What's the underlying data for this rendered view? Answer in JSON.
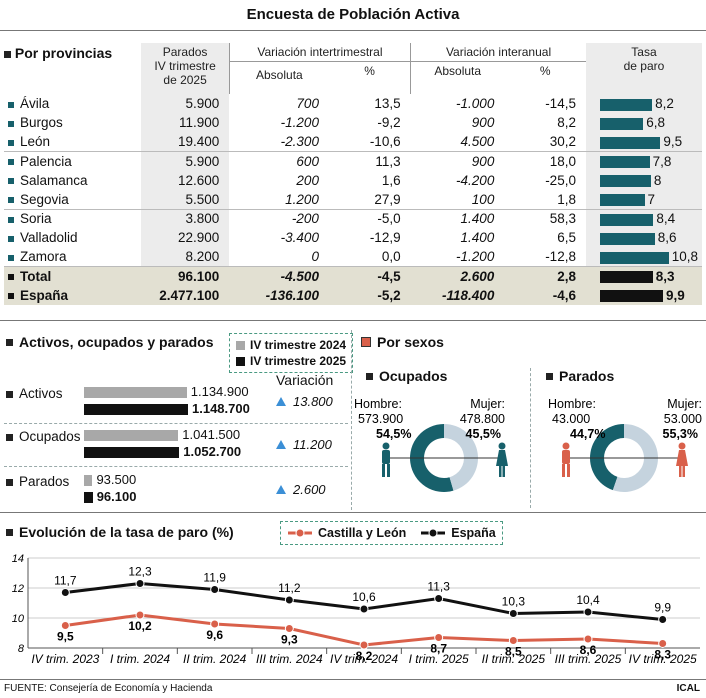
{
  "title": "Encuesta de Población Activa",
  "provincias": {
    "section_label": "Por provincias",
    "headers": {
      "parados": "Parados\nIV trimestre\nde 2025",
      "var_inter": "Variación intertrimestral",
      "var_anual": "Variación interanual",
      "absoluta": "Absoluta",
      "pct": "%",
      "tasa": "Tasa\nde paro"
    },
    "rows": [
      {
        "name": "Ávila",
        "parados": "5.900",
        "abs_t": "700",
        "pct_t": "13,5",
        "abs_a": "-1.000",
        "pct_a": "-14,5",
        "tasa": "8,2",
        "tasa_val": 8.2
      },
      {
        "name": "Burgos",
        "parados": "11.900",
        "abs_t": "-1.200",
        "pct_t": "-9,2",
        "abs_a": "900",
        "pct_a": "8,2",
        "tasa": "6,8",
        "tasa_val": 6.8
      },
      {
        "name": "León",
        "parados": "19.400",
        "abs_t": "-2.300",
        "pct_t": "-10,6",
        "abs_a": "4.500",
        "pct_a": "30,2",
        "tasa": "9,5",
        "tasa_val": 9.5
      },
      {
        "name": "Palencia",
        "parados": "5.900",
        "abs_t": "600",
        "pct_t": "11,3",
        "abs_a": "900",
        "pct_a": "18,0",
        "tasa": "7,8",
        "tasa_val": 7.8
      },
      {
        "name": "Salamanca",
        "parados": "12.600",
        "abs_t": "200",
        "pct_t": "1,6",
        "abs_a": "-4.200",
        "pct_a": "-25,0",
        "tasa": "8",
        "tasa_val": 8.0
      },
      {
        "name": "Segovia",
        "parados": "5.500",
        "abs_t": "1.200",
        "pct_t": "27,9",
        "abs_a": "100",
        "pct_a": "1,8",
        "tasa": "7",
        "tasa_val": 7.0
      },
      {
        "name": "Soria",
        "parados": "3.800",
        "abs_t": "-200",
        "pct_t": "-5,0",
        "abs_a": "1.400",
        "pct_a": "58,3",
        "tasa": "8,4",
        "tasa_val": 8.4
      },
      {
        "name": "Valladolid",
        "parados": "22.900",
        "abs_t": "-3.400",
        "pct_t": "-12,9",
        "abs_a": "1.400",
        "pct_a": "6,5",
        "tasa": "8,6",
        "tasa_val": 8.6
      },
      {
        "name": "Zamora",
        "parados": "8.200",
        "abs_t": "0",
        "pct_t": "0,0",
        "abs_a": "-1.200",
        "pct_a": "-12,8",
        "tasa": "10,8",
        "tasa_val": 10.8
      }
    ],
    "totals": [
      {
        "name": "Total",
        "parados": "96.100",
        "abs_t": "-4.500",
        "pct_t": "-4,5",
        "abs_a": "2.600",
        "pct_a": "2,8",
        "tasa": "8,3",
        "tasa_val": 8.3
      },
      {
        "name": "España",
        "parados": "2.477.100",
        "abs_t": "-136.100",
        "pct_t": "-5,2",
        "abs_a": "-118.400",
        "pct_a": "-4,6",
        "tasa": "9,9",
        "tasa_val": 9.9
      }
    ]
  },
  "activos": {
    "section_label": "Activos, ocupados y parados",
    "legend": [
      "IV trimestre 2024",
      "IV trimestre 2025"
    ],
    "variacion_label": "Variación",
    "rows": [
      {
        "name": "Activos",
        "v2024": "1.134.900",
        "v2025": "1.148.700",
        "n2024": 1134900,
        "n2025": 1148700,
        "variacion": "13.800"
      },
      {
        "name": "Ocupados",
        "v2024": "1.041.500",
        "v2025": "1.052.700",
        "n2024": 1041500,
        "n2025": 1052700,
        "variacion": "11.200"
      },
      {
        "name": "Parados",
        "v2024": "93.500",
        "v2025": "96.100",
        "n2024": 93500,
        "n2025": 96100,
        "variacion": "2.600"
      }
    ]
  },
  "sexos": {
    "section_label": "Por sexos",
    "ocupados": {
      "label": "Ocupados",
      "hombre_label": "Hombre:",
      "hombre_val": "573.900",
      "hombre_pct": "54,5%",
      "hombre_num": 54.5,
      "mujer_label": "Mujer:",
      "mujer_val": "478.800",
      "mujer_pct": "45,5%",
      "mujer_num": 45.5
    },
    "parados": {
      "label": "Parados",
      "hombre_label": "Hombre:",
      "hombre_val": "43.000",
      "hombre_pct": "44,7%",
      "hombre_num": 44.7,
      "mujer_label": "Mujer:",
      "mujer_val": "53.000",
      "mujer_pct": "55,3%",
      "mujer_num": 55.3
    }
  },
  "evolucion": {
    "section_label": "Evolución de la tasa de paro (%)",
    "legend": [
      "Castilla y León",
      "España"
    ]
  },
  "chart_data": {
    "type": "line",
    "title": "Evolución de la tasa de paro (%)",
    "categories": [
      "IV trim. 2023",
      "I trim. 2024",
      "II trim. 2024",
      "III trim. 2024",
      "IV trim. 2024",
      "I trim. 2025",
      "II trim. 2025",
      "III trim. 2025",
      "IV trim. 2025"
    ],
    "series": [
      {
        "name": "Castilla y León",
        "values": [
          9.5,
          10.2,
          9.6,
          9.3,
          8.2,
          8.7,
          8.5,
          8.6,
          8.3
        ],
        "labels": [
          "9,5",
          "10,2",
          "9,6",
          "9,3",
          "8,2",
          "8,7",
          "8,5",
          "8,6",
          "8,3"
        ],
        "color": "#d9604a"
      },
      {
        "name": "España",
        "values": [
          11.7,
          12.3,
          11.9,
          11.2,
          10.6,
          11.3,
          10.3,
          10.4,
          9.9
        ],
        "labels": [
          "11,7",
          "12,3",
          "11,9",
          "11,2",
          "10,6",
          "11,3",
          "10,3",
          "10,4",
          "9,9"
        ],
        "color": "#111111"
      }
    ],
    "yticks": [
      "8",
      "10",
      "12",
      "14"
    ],
    "ylim": [
      8,
      14
    ],
    "grid": true
  },
  "footer": {
    "source": "FUENTE: Consejería de Economía y Hacienda",
    "credit": "ICAL"
  },
  "colors": {
    "teal": "#17606b",
    "lightblue": "#c5d3de",
    "orange": "#d9604a",
    "gray": "#a8a8a8",
    "beige": "#e2e0d2"
  }
}
